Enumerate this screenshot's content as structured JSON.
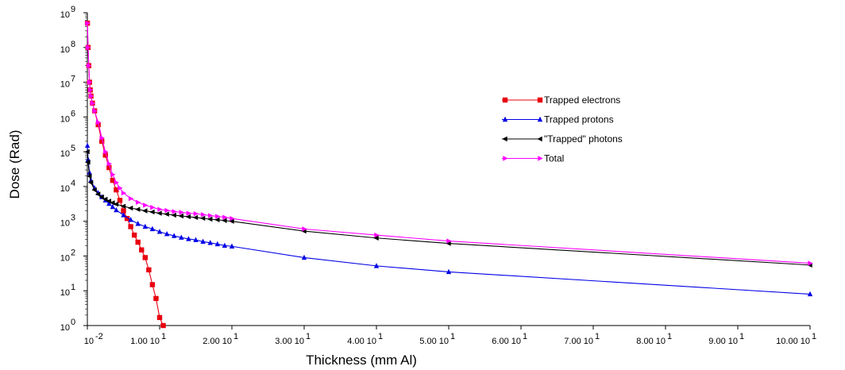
{
  "chart_data": {
    "type": "line",
    "title": "",
    "xlabel": "Thickness (mm Al)",
    "ylabel": "Dose (Rad)",
    "y_scale": "log",
    "xlim": [
      0,
      100
    ],
    "ylim": [
      1,
      1000000000
    ],
    "grid": false,
    "legend_position": "upper-right",
    "x_ticks": [
      {
        "value": 0,
        "base": "10",
        "exp": "-2"
      },
      {
        "value": 10,
        "base": "1.00 10",
        "exp": "1"
      },
      {
        "value": 20,
        "base": "2.00 10",
        "exp": "1"
      },
      {
        "value": 30,
        "base": "3.00 10",
        "exp": "1"
      },
      {
        "value": 40,
        "base": "4.00 10",
        "exp": "1"
      },
      {
        "value": 50,
        "base": "5.00 10",
        "exp": "1"
      },
      {
        "value": 60,
        "base": "6.00 10",
        "exp": "1"
      },
      {
        "value": 70,
        "base": "7.00 10",
        "exp": "1"
      },
      {
        "value": 80,
        "base": "8.00 10",
        "exp": "1"
      },
      {
        "value": 90,
        "base": "9.00 10",
        "exp": "1"
      },
      {
        "value": 100,
        "base": "10.00 10",
        "exp": "1"
      }
    ],
    "y_ticks": [
      {
        "value": 1,
        "base": "10",
        "exp": "0"
      },
      {
        "value": 10,
        "base": "10",
        "exp": "1"
      },
      {
        "value": 100,
        "base": "10",
        "exp": "2"
      },
      {
        "value": 1000,
        "base": "10",
        "exp": "3"
      },
      {
        "value": 10000,
        "base": "10",
        "exp": "4"
      },
      {
        "value": 100000,
        "base": "10",
        "exp": "5"
      },
      {
        "value": 1000000,
        "base": "10",
        "exp": "6"
      },
      {
        "value": 10000000,
        "base": "10",
        "exp": "7"
      },
      {
        "value": 100000000,
        "base": "10",
        "exp": "8"
      },
      {
        "value": 1000000000,
        "base": "10",
        "exp": "9"
      }
    ],
    "series": [
      {
        "name": "Trapped electrons",
        "color": "#e8000f",
        "marker": "square",
        "x": [
          0.01,
          0.1,
          0.2,
          0.3,
          0.4,
          0.5,
          0.7,
          1.0,
          1.5,
          2.0,
          2.5,
          3.0,
          3.5,
          4.0,
          4.5,
          5.0,
          5.5,
          6.0,
          6.5,
          7.0,
          7.5,
          8.0,
          8.5,
          9.0,
          9.5,
          10.0,
          10.5
        ],
        "y": [
          500000000,
          100000000,
          30000000,
          10000000,
          6000000,
          4000000,
          2500000,
          1500000,
          600000,
          200000,
          80000,
          35000,
          15000,
          8000,
          4000,
          2000,
          1200,
          700,
          400,
          250,
          150,
          90,
          40,
          15,
          6,
          1.7,
          1
        ]
      },
      {
        "name": "Trapped protons",
        "color": "#0000e6",
        "marker": "triangle-up",
        "x": [
          0.01,
          0.1,
          0.3,
          0.5,
          1.0,
          1.5,
          2.0,
          2.5,
          3.0,
          3.5,
          4.0,
          5.0,
          6.0,
          7.0,
          8.0,
          9.0,
          10.0,
          11.0,
          12.0,
          13.0,
          14.0,
          15.0,
          16.0,
          17.0,
          18.0,
          19.0,
          20.0,
          30.0,
          40.0,
          50.0,
          100.0
        ],
        "y": [
          150000,
          60000,
          25000,
          15000,
          9000,
          6500,
          5000,
          4000,
          3200,
          2600,
          2100,
          1500,
          1100,
          850,
          700,
          600,
          500,
          430,
          380,
          340,
          310,
          290,
          260,
          240,
          220,
          200,
          190,
          90,
          52,
          35,
          8
        ]
      },
      {
        "name": "\"Trapped\" photons",
        "color": "#000000",
        "marker": "triangle-left",
        "x": [
          0.01,
          0.1,
          0.3,
          0.5,
          1.0,
          1.5,
          2.0,
          2.5,
          3.0,
          3.5,
          4.0,
          5.0,
          6.0,
          7.0,
          8.0,
          9.0,
          10.0,
          11.0,
          12.0,
          13.0,
          14.0,
          15.0,
          16.0,
          17.0,
          18.0,
          19.0,
          20.0,
          30.0,
          40.0,
          50.0,
          100.0
        ],
        "y": [
          100000,
          50000,
          20000,
          13000,
          8000,
          6000,
          5000,
          4300,
          3800,
          3400,
          3100,
          2700,
          2400,
          2200,
          2000,
          1850,
          1700,
          1600,
          1500,
          1420,
          1350,
          1280,
          1220,
          1150,
          1100,
          1050,
          1000,
          520,
          330,
          230,
          55
        ]
      },
      {
        "name": "Total",
        "color": "#ff00ff",
        "marker": "triangle-right",
        "x": [
          0.01,
          0.1,
          0.2,
          0.3,
          0.4,
          0.5,
          0.7,
          1.0,
          1.5,
          2.0,
          2.5,
          3.0,
          3.5,
          4.0,
          4.5,
          5.0,
          6.0,
          7.0,
          8.0,
          9.0,
          10.0,
          11.0,
          12.0,
          13.0,
          14.0,
          15.0,
          16.0,
          17.0,
          18.0,
          19.0,
          20.0,
          30.0,
          40.0,
          50.0,
          100.0
        ],
        "y": [
          500000000,
          100000000,
          30000000,
          10000000,
          6000000,
          4000000,
          2500000,
          1500000,
          700000,
          250000,
          100000,
          45000,
          22000,
          13000,
          9000,
          6500,
          4500,
          3500,
          2900,
          2500,
          2200,
          2050,
          1900,
          1800,
          1700,
          1650,
          1550,
          1450,
          1380,
          1300,
          1200,
          600,
          400,
          270,
          62
        ]
      }
    ]
  }
}
